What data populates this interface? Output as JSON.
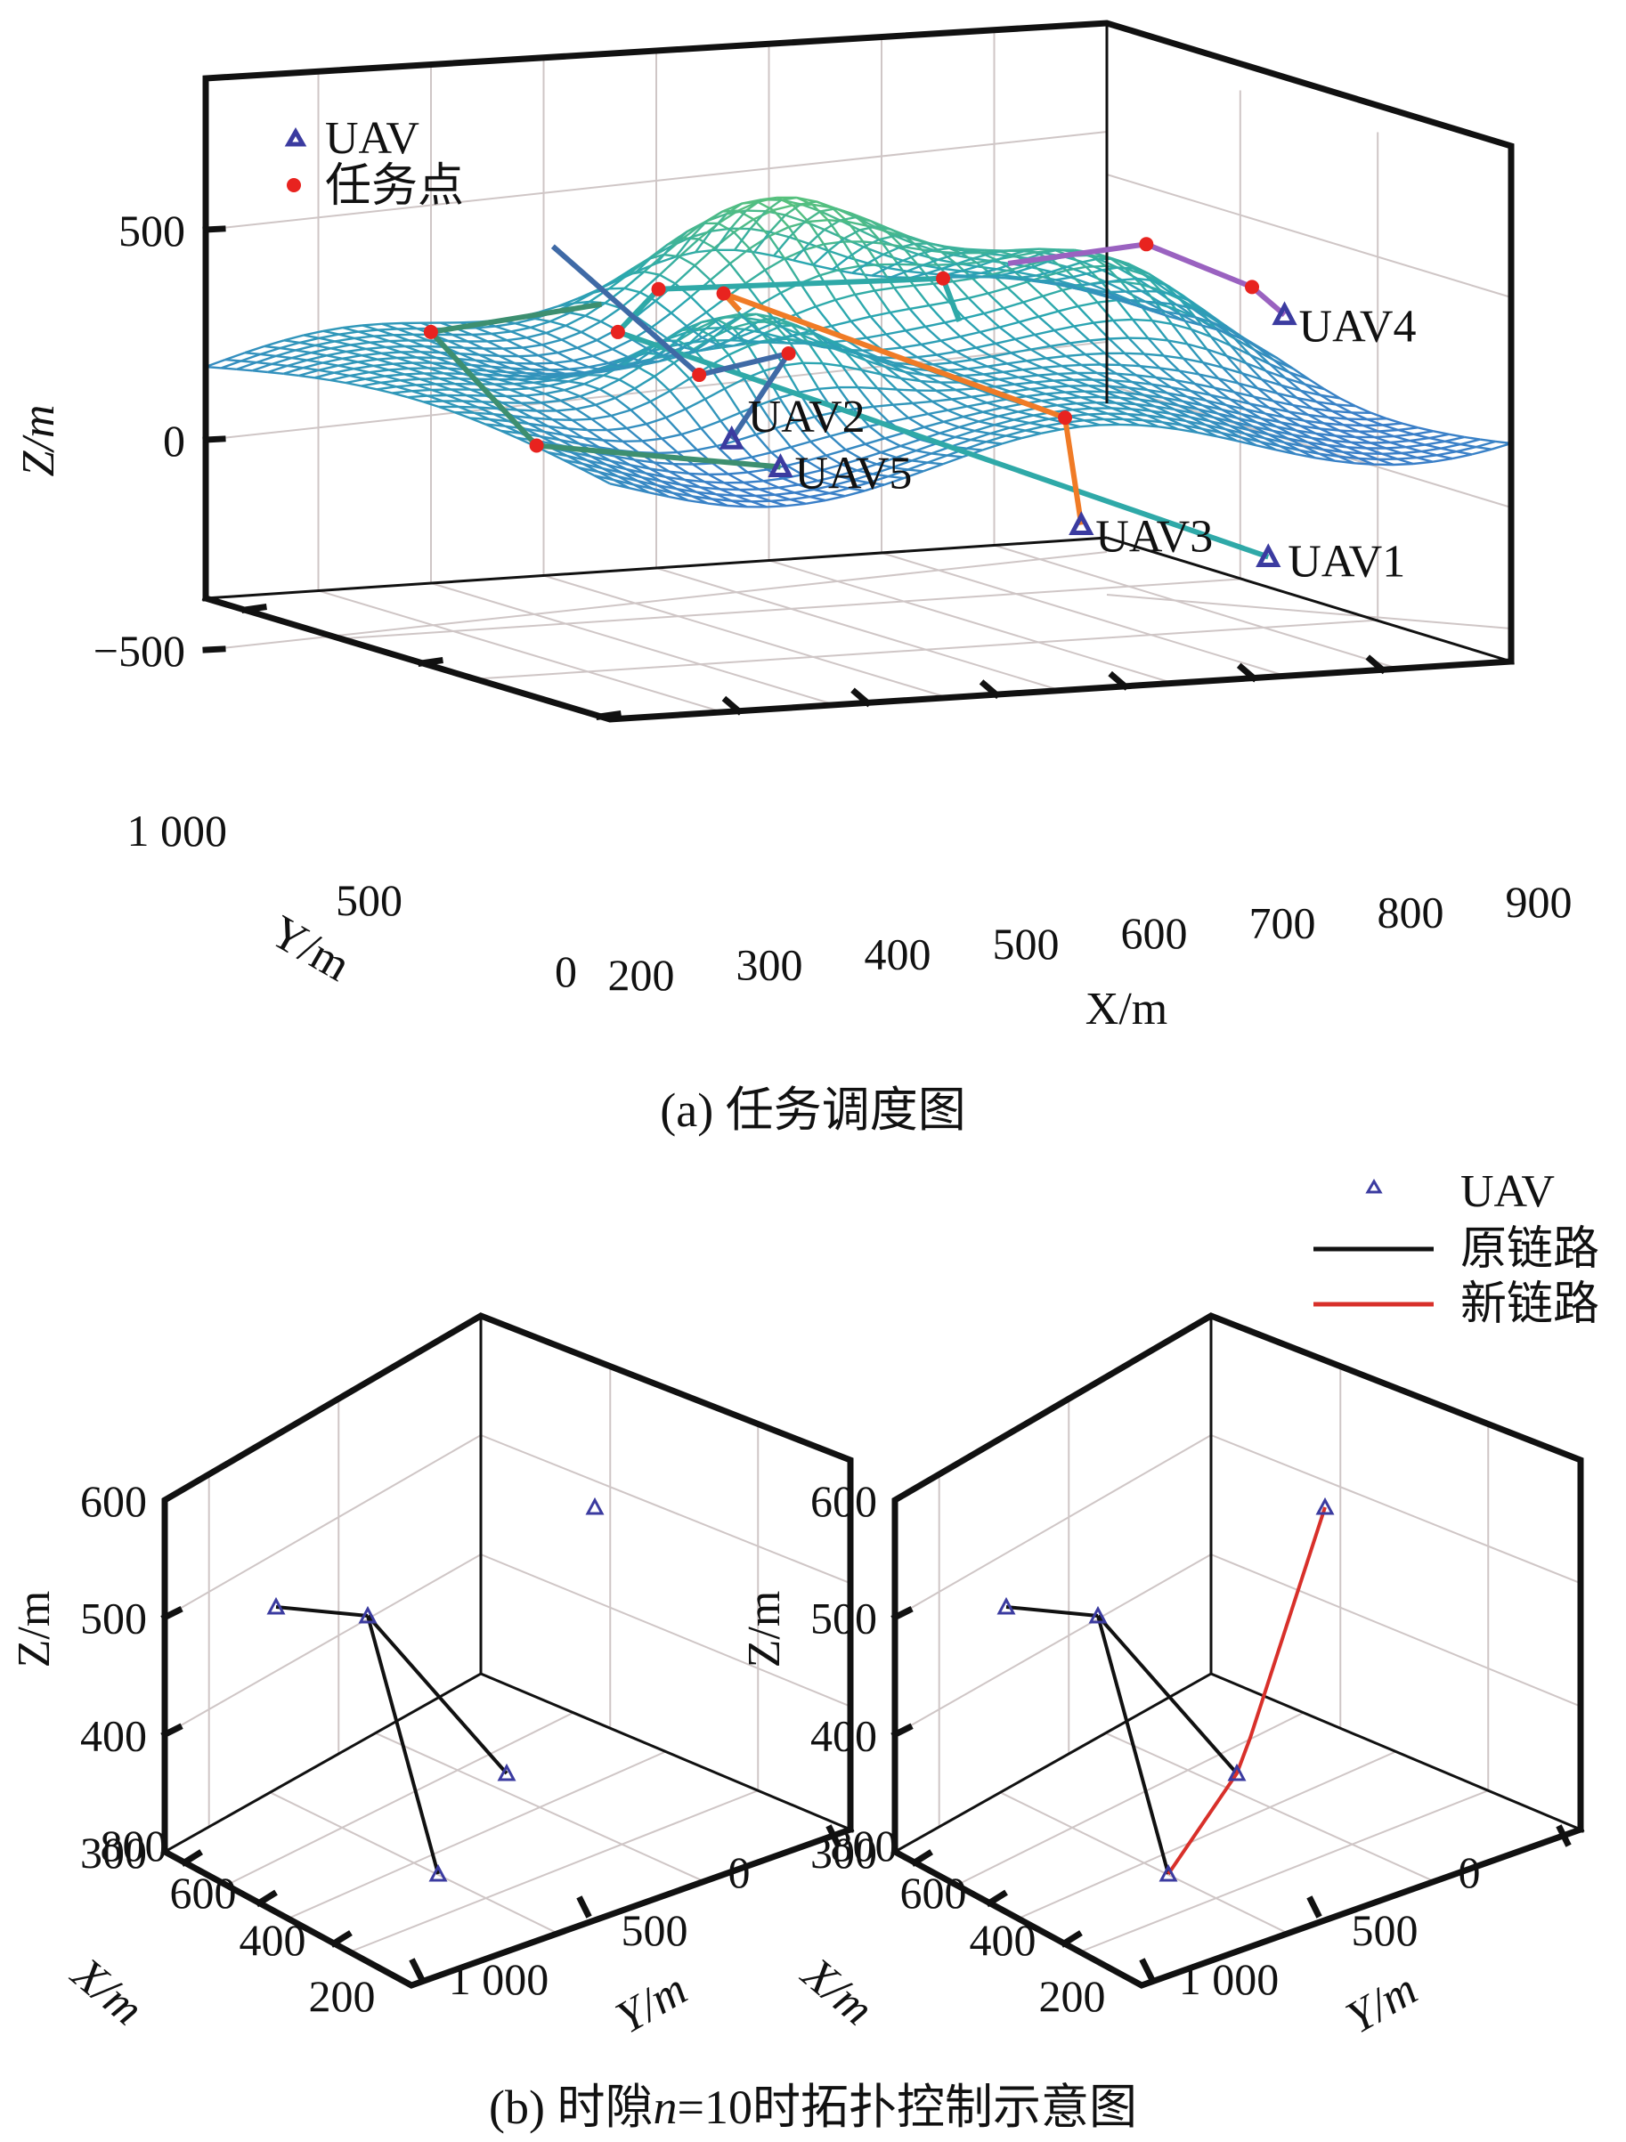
{
  "chart_data": [
    {
      "id": "a",
      "type": "line",
      "projection": "3d",
      "caption": "(a) 任务调度图",
      "xlabel": "X/m",
      "ylabel": "Y/m",
      "zlabel": "Z/m",
      "x_ticks": [
        "200",
        "300",
        "400",
        "500",
        "600",
        "700",
        "800",
        "900"
      ],
      "y_ticks": [
        "0",
        "500",
        "1 000"
      ],
      "z_ticks": [
        "500",
        "0",
        "−500"
      ],
      "xlim": [
        200,
        900
      ],
      "ylim": [
        0,
        1000
      ],
      "zlim": [
        -800,
        800
      ],
      "grid": true,
      "legend": {
        "placement": "top-left",
        "entries": [
          {
            "label": "UAV",
            "marker": "triangle-open",
            "color": "#3b3ba0"
          },
          {
            "label": "任务点",
            "marker": "dot",
            "color": "#e8231f"
          }
        ]
      },
      "terrain": {
        "kind": "mesh surface",
        "colormap": [
          "#3a7fc8",
          "#2aa7b0",
          "#59c27a",
          "#b8dc4a"
        ],
        "zrange_approx": [
          -700,
          0
        ]
      },
      "routes": [
        {
          "uav": "UAV1",
          "color": "#2fa9a8",
          "screen_path": [
            [
              0.78,
              0.26
            ],
            [
              0.38,
              0.155
            ],
            [
              0.405,
              0.135
            ],
            [
              0.58,
              0.13
            ],
            [
              0.59,
              0.15
            ]
          ]
        },
        {
          "uav": "UAV2",
          "color": "#3f6aa6",
          "screen_path": [
            [
              0.45,
              0.205
            ],
            [
              0.485,
              0.165
            ],
            [
              0.43,
              0.175
            ],
            [
              0.34,
              0.115
            ]
          ]
        },
        {
          "uav": "UAV3",
          "color": "#f07b26",
          "screen_path": [
            [
              0.665,
              0.245
            ],
            [
              0.655,
              0.195
            ],
            [
              0.445,
              0.137
            ],
            [
              0.455,
              0.145
            ]
          ]
        },
        {
          "uav": "UAV4",
          "color": "#9a62c0",
          "screen_path": [
            [
              0.79,
              0.147
            ],
            [
              0.77,
              0.134
            ],
            [
              0.705,
              0.114
            ],
            [
              0.62,
              0.123
            ]
          ]
        },
        {
          "uav": "UAV5",
          "color": "#3d8f70",
          "screen_path": [
            [
              0.48,
              0.218
            ],
            [
              0.33,
              0.208
            ],
            [
              0.265,
              0.155
            ],
            [
              0.37,
              0.142
            ]
          ]
        }
      ],
      "uav_labels": [
        "UAV1",
        "UAV2",
        "UAV3",
        "UAV4",
        "UAV5"
      ]
    },
    {
      "id": "b-left",
      "type": "scatter",
      "projection": "3d",
      "xlabel": "X/m",
      "ylabel": "Y/m",
      "zlabel": "Z/m",
      "x_ticks": [
        "200",
        "400",
        "600",
        "800"
      ],
      "y_ticks": [
        "0",
        "500",
        "1 000"
      ],
      "z_ticks": [
        "300",
        "400",
        "500",
        "600"
      ],
      "zlim": [
        300,
        600
      ],
      "grid": true,
      "uav_count": 5,
      "links_original": [
        [
          0,
          1
        ],
        [
          1,
          2
        ],
        [
          1,
          3
        ]
      ],
      "links_new": []
    },
    {
      "id": "b-right",
      "type": "scatter",
      "projection": "3d",
      "xlabel": "X/m",
      "ylabel": "Y/m",
      "zlabel": "Z/m",
      "x_ticks": [
        "200",
        "400",
        "600",
        "800"
      ],
      "y_ticks": [
        "0",
        "500",
        "1 000"
      ],
      "z_ticks": [
        "300",
        "400",
        "500",
        "600"
      ],
      "zlim": [
        300,
        600
      ],
      "grid": true,
      "uav_count": 5,
      "links_original": [
        [
          0,
          1
        ],
        [
          1,
          2
        ],
        [
          1,
          3
        ]
      ],
      "links_new": [
        [
          3,
          2
        ],
        [
          2,
          4
        ]
      ]
    }
  ],
  "legend_b": {
    "placement": "top-right",
    "entries": [
      {
        "label": "UAV",
        "marker": "triangle-open",
        "color": "#3b3ba0"
      },
      {
        "label": "原链路",
        "line": true,
        "color": "#111111"
      },
      {
        "label": "新链路",
        "line": true,
        "color": "#d8302a"
      }
    ]
  },
  "caption_b": "(b) 时隙n=10时拓扑控制示意图",
  "caption_b_parts": {
    "prefix": "(b) 时隙",
    "var": "n",
    "suffix": "=10时拓扑控制示意图"
  }
}
